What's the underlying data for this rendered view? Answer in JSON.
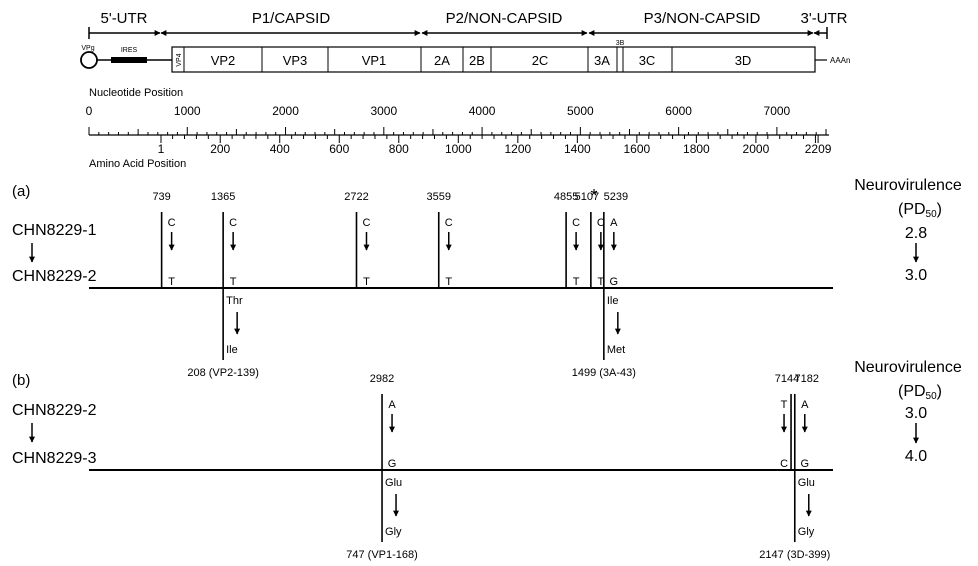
{
  "genome": {
    "region_labels": [
      "5'-UTR",
      "P1/CAPSID",
      "P2/NON-CAPSID",
      "P3/NON-CAPSID",
      "3'-UTR"
    ],
    "vpg_label": "VPg",
    "ires_label": "IRES",
    "polya_label": "AAAn",
    "segments": [
      "VP4",
      "VP2",
      "VP3",
      "VP1",
      "2A",
      "2B",
      "2C",
      "3A",
      "3B",
      "3C",
      "3D"
    ]
  },
  "scale": {
    "nucleotide_title": "Nucleotide Position",
    "nucleotide_ticks": [
      "0",
      "1000",
      "2000",
      "3000",
      "4000",
      "5000",
      "6000",
      "7000"
    ],
    "amino_title": "Amino Acid Position",
    "amino_ticks": [
      "1",
      "200",
      "400",
      "600",
      "800",
      "1000",
      "1200",
      "1400",
      "1600",
      "1800",
      "2000",
      "2209"
    ]
  },
  "panel_a": {
    "label": "(a)",
    "strain_from": "CHN8229-1",
    "strain_to": "CHN8229-2",
    "neuro_title": "Neurovirulence",
    "neuro_unit_prefix": "(PD",
    "neuro_unit_sub": "50",
    "neuro_unit_suffix": ")",
    "neuro_from": "2.8",
    "neuro_to": "3.0",
    "asterisk": "*",
    "mutations": [
      {
        "pos": "739",
        "from": "C",
        "to": "T"
      },
      {
        "pos": "1365",
        "from": "C",
        "to": "T"
      },
      {
        "pos": "2722",
        "from": "C",
        "to": "T"
      },
      {
        "pos": "3559",
        "from": "C",
        "to": "T"
      },
      {
        "pos": "4855",
        "from": "C",
        "to": "T"
      },
      {
        "pos": "5107",
        "from": "C",
        "to": "T"
      },
      {
        "pos": "5239",
        "from": "A",
        "to": "G"
      }
    ],
    "aa_changes": [
      {
        "from": "Thr",
        "to": "Ile",
        "label": "208 (VP2-139)"
      },
      {
        "from": "Ile",
        "to": "Met",
        "label": "1499 (3A-43)"
      }
    ]
  },
  "panel_b": {
    "label": "(b)",
    "strain_from": "CHN8229-2",
    "strain_to": "CHN8229-3",
    "neuro_title": "Neurovirulence",
    "neuro_unit_prefix": "(PD",
    "neuro_unit_sub": "50",
    "neuro_unit_suffix": ")",
    "neuro_from": "3.0",
    "neuro_to": "4.0",
    "mutations": [
      {
        "pos": "2982",
        "from": "A",
        "to": "G"
      },
      {
        "pos": "7144",
        "from": "T",
        "to": "C"
      },
      {
        "pos": "7182",
        "from": "A",
        "to": "G"
      }
    ],
    "aa_changes": [
      {
        "from": "Glu",
        "to": "Gly",
        "label": "747 (VP1-168)"
      },
      {
        "from": "Glu",
        "to": "Gly",
        "label": "2147 (3D-399)"
      }
    ]
  }
}
